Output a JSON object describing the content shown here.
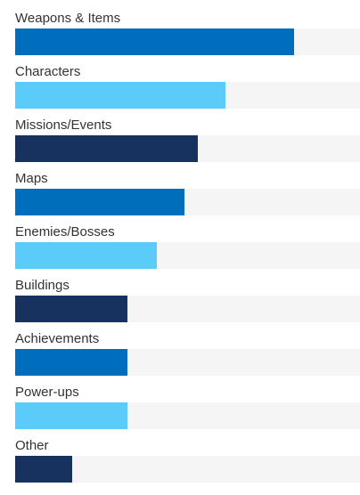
{
  "chart_data": {
    "type": "bar",
    "orientation": "horizontal",
    "categories": [
      "Weapons & Items",
      "Characters",
      "Missions/Events",
      "Maps",
      "Enemies/Bosses",
      "Buildings",
      "Achievements",
      "Power-ups",
      "Other"
    ],
    "values": [
      81,
      61,
      53,
      49,
      41,
      32.5,
      32.5,
      32.5,
      16.5
    ],
    "xlim": [
      0,
      100
    ],
    "colors": [
      "#006ebd",
      "#5bccfa",
      "#17325f",
      "#006ebd",
      "#5bccfa",
      "#17325f",
      "#006ebd",
      "#5bccfa",
      "#17325f"
    ],
    "track_color": "#f5f5f5",
    "grid": false,
    "legend": "none",
    "title": "",
    "xlabel": "",
    "ylabel": ""
  }
}
